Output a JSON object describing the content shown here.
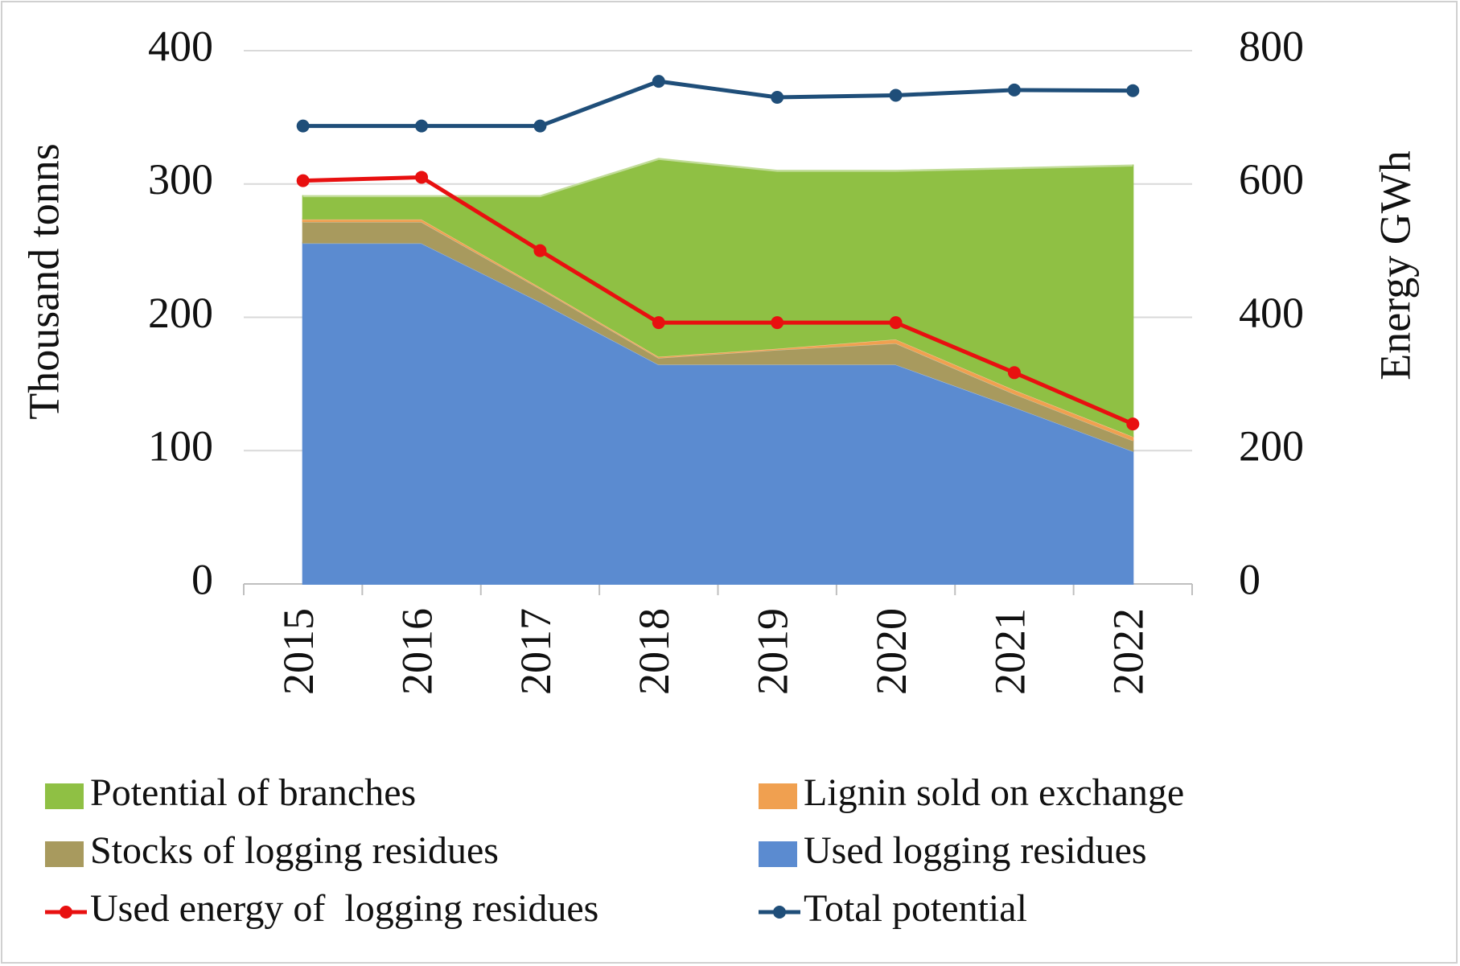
{
  "chart_data": {
    "type": "area",
    "y_label": "Thousand  tonns",
    "y2_label": "Energy  GWh",
    "categories": [
      "2015",
      "2016",
      "2017",
      "2018",
      "2019",
      "2020",
      "2021",
      "2022"
    ],
    "series": [
      {
        "name": "Used logging residues",
        "type": "area",
        "color": "#5b8bd0",
        "values": [
          256,
          256,
          212,
          165,
          165,
          165,
          133,
          100
        ]
      },
      {
        "name": "Stocks of logging residues",
        "type": "area",
        "color": "#a89a5e",
        "values": [
          16,
          16,
          10,
          5,
          11,
          16,
          10,
          8
        ]
      },
      {
        "name": "Lignin sold on exchange",
        "type": "area",
        "color": "#f0a050",
        "values": [
          2,
          2,
          1,
          1,
          1,
          3,
          3,
          3
        ]
      },
      {
        "name": "Potential of branches",
        "type": "area",
        "color": "#8fc044",
        "values": [
          17,
          17,
          68,
          148,
          133,
          126,
          166,
          203
        ]
      },
      {
        "name": "Used energy of  logging residues",
        "type": "line",
        "axis": "y2",
        "color": "#e81010",
        "values": [
          605,
          610,
          500,
          392,
          392,
          392,
          317,
          240
        ]
      },
      {
        "name": "Total potential",
        "type": "line",
        "axis": "y2",
        "color": "#1f4e79",
        "values": [
          687,
          687,
          687,
          754,
          730,
          733,
          741,
          740
        ]
      }
    ],
    "ylim": [
      0,
      400
    ],
    "yticks": [
      0,
      100,
      200,
      300,
      400
    ],
    "y2lim": [
      0,
      800
    ],
    "y2ticks": [
      0,
      200,
      400,
      600,
      800
    ],
    "grid": true
  }
}
